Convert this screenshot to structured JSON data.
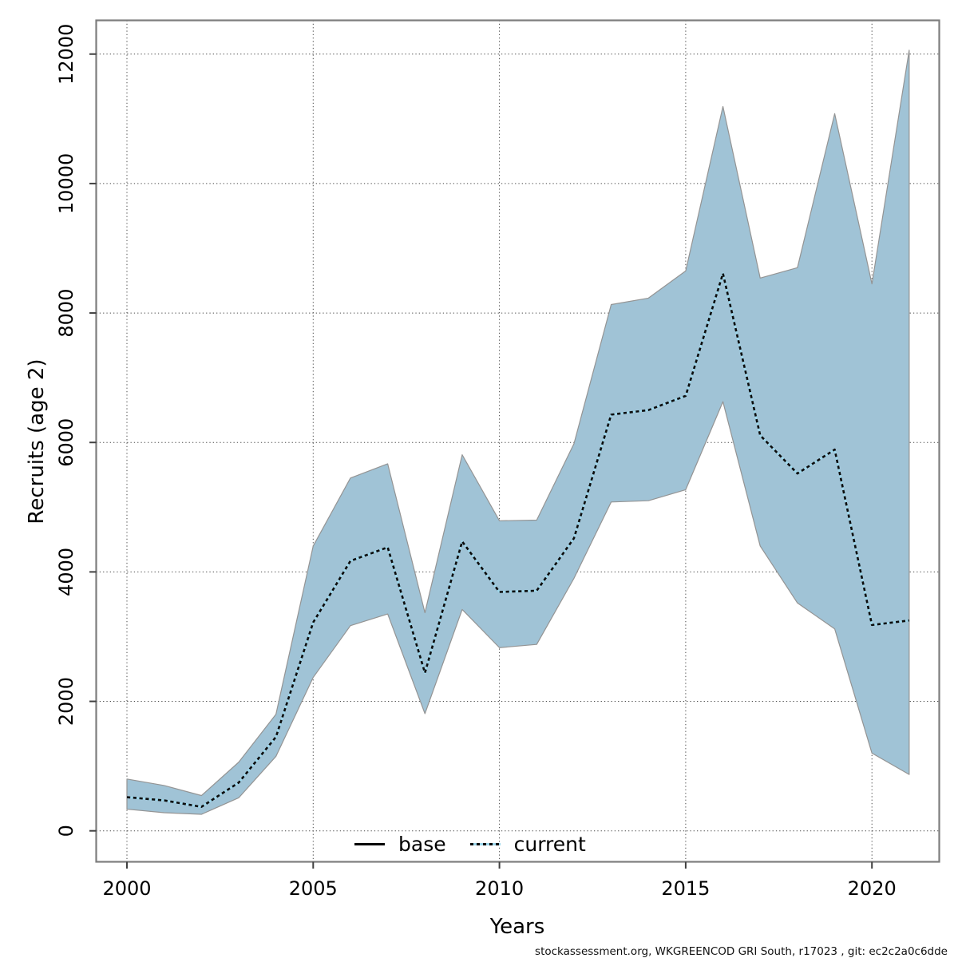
{
  "figure": {
    "xlabel": "Years",
    "ylabel": "Recruits (age 2)",
    "footer": "stockassessment.org, WKGREENCOD  GRI  South, r17023 , git: ec2c2a0c6dde",
    "legend": {
      "base_label": "base",
      "current_label": "current"
    }
  },
  "colors": {
    "band_fill": "#a0c3d6",
    "band_edge": "#949494",
    "current_line_under": "#9ed7ec",
    "current_line_dash": "#0c0c0c",
    "base_line": "#000000",
    "grid": "#4a4a4a",
    "plot_border": "#7d7d7d",
    "tick": "#404040",
    "text": "#000000"
  },
  "chart_data": {
    "type": "line",
    "title": "",
    "xlabel": "Years",
    "ylabel": "Recruits (age 2)",
    "grid": true,
    "legend_position": "bottom",
    "legend_entries": [
      "base",
      "current"
    ],
    "x_ticks": [
      2000,
      2005,
      2010,
      2015,
      2020
    ],
    "y_ticks": [
      0,
      2000,
      4000,
      6000,
      8000,
      10000,
      12000
    ],
    "xlim": [
      1999.2,
      2021.8
    ],
    "ylim": [
      -475,
      12520
    ],
    "x": [
      2000,
      2001,
      2002,
      2003,
      2004,
      2005,
      2006,
      2007,
      2008,
      2009,
      2010,
      2011,
      2012,
      2013,
      2014,
      2015,
      2016,
      2017,
      2018,
      2019,
      2020,
      2021
    ],
    "series": [
      {
        "name": "current",
        "style": "dotted black over solid light-blue",
        "values": [
          520,
          470,
          370,
          745,
          1450,
          3220,
          4170,
          4380,
          2440,
          4470,
          3690,
          3710,
          4520,
          6430,
          6500,
          6720,
          8610,
          6110,
          5520,
          5890,
          3180,
          3250
        ]
      },
      {
        "name": "base",
        "style": "solid black, visually coincides with current line in plot",
        "values": [
          520,
          470,
          370,
          745,
          1450,
          3220,
          4170,
          4380,
          2440,
          4470,
          3690,
          3710,
          4520,
          6430,
          6500,
          6720,
          8610,
          6110,
          5520,
          5890,
          3180,
          3250
        ]
      }
    ],
    "band": {
      "name": "current confidence interval",
      "lower": [
        335,
        280,
        255,
        510,
        1150,
        2370,
        3170,
        3350,
        1810,
        3420,
        2830,
        2880,
        3900,
        5080,
        5100,
        5270,
        6630,
        4400,
        3520,
        3120,
        1200,
        870
      ],
      "upper": [
        800,
        700,
        545,
        1060,
        1800,
        4400,
        5450,
        5670,
        3370,
        5810,
        4790,
        4800,
        5980,
        8130,
        8230,
        8650,
        11190,
        8540,
        8700,
        11080,
        8450,
        12060
      ]
    }
  }
}
